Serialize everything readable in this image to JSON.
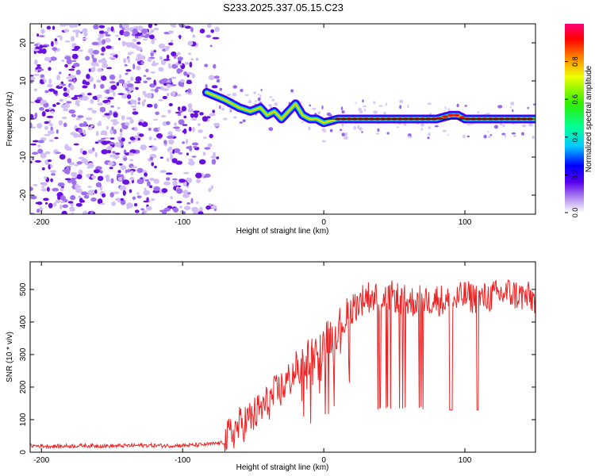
{
  "title": "S233.2025.337.05.15.C23",
  "chart_data": [
    {
      "type": "heatmap",
      "xlabel": "Height of straight line (km)",
      "ylabel": "Frequency (Hz)",
      "xlim": [
        -208,
        150
      ],
      "ylim": [
        -25,
        25
      ],
      "x_ticks": [
        -200,
        -100,
        0,
        100
      ],
      "y_ticks": [
        -20,
        -10,
        0,
        10,
        20
      ],
      "colorbar": {
        "label": "Normalized spectral amplitude",
        "range": [
          0,
          1
        ],
        "ticks": [
          "0.0",
          "0.2",
          "0.4",
          "0.6",
          "0.8"
        ],
        "tick_values": [
          0,
          0.2,
          0.4,
          0.6,
          0.8
        ]
      },
      "ridge": {
        "x": [
          -83,
          -70,
          -60,
          -52,
          -45,
          -40,
          -35,
          -30,
          -25,
          -20,
          -15,
          -10,
          -5,
          0,
          10,
          20,
          40,
          60,
          80,
          90,
          95,
          100,
          120,
          150
        ],
        "y": [
          7,
          5,
          3,
          2,
          3,
          1,
          2,
          0,
          2,
          4,
          1,
          0,
          0,
          -1,
          0,
          0,
          0,
          0,
          0,
          1,
          1,
          0,
          0,
          0
        ]
      },
      "noise_region": [
        -208,
        -75
      ]
    },
    {
      "type": "line",
      "xlabel": "Height of straight line (km)",
      "ylabel": "SNR (10 * v/v)",
      "xlim": [
        -208,
        150
      ],
      "ylim": [
        0,
        585
      ],
      "x_ticks": [
        -200,
        -100,
        0,
        100
      ],
      "y_ticks": [
        0,
        100,
        200,
        300,
        400,
        500
      ],
      "color": "#ee2222",
      "x": [
        -208,
        -190,
        -170,
        -150,
        -130,
        -110,
        -90,
        -80,
        -70,
        -65,
        -60,
        -55,
        -50,
        -45,
        -40,
        -35,
        -30,
        -25,
        -20,
        -15,
        -10,
        -5,
        0,
        5,
        10,
        15,
        20,
        25,
        30,
        40,
        50,
        60,
        70,
        80,
        90,
        100,
        110,
        120,
        130,
        140,
        150
      ],
      "values": [
        20,
        18,
        20,
        19,
        21,
        20,
        22,
        25,
        30,
        60,
        80,
        95,
        110,
        130,
        150,
        175,
        195,
        220,
        250,
        270,
        300,
        320,
        340,
        360,
        380,
        410,
        440,
        460,
        480,
        470,
        480,
        460,
        470,
        470,
        460,
        480,
        470,
        480,
        490,
        480,
        470
      ],
      "dips_to": 130,
      "dip_region": [
        38,
        75
      ]
    }
  ]
}
